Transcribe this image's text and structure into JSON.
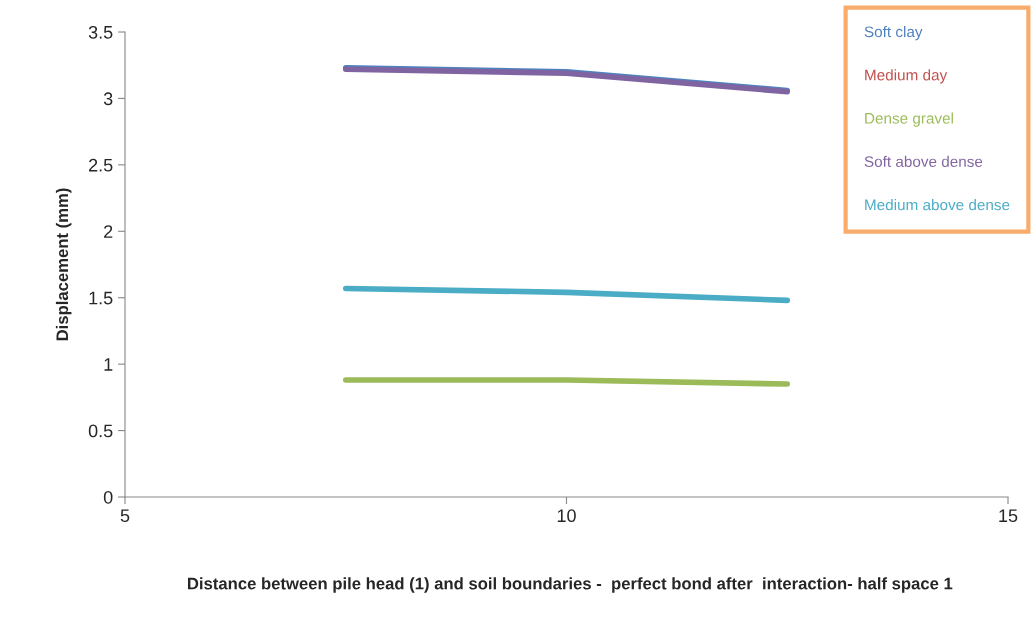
{
  "chart_data": {
    "type": "line",
    "xlabel": "Distance between pile head (1) and soil boundaries -  perfect bond after  interaction- half space 1",
    "ylabel": "Displacement (mm)",
    "x": [
      7.5,
      10,
      12.5
    ],
    "series": [
      {
        "name": "Soft clay",
        "color": "#4f81bd",
        "values": [
          3.23,
          3.2,
          3.06
        ]
      },
      {
        "name": "Medium day",
        "color": "#c0504d",
        "values": [
          null,
          null,
          null
        ]
      },
      {
        "name": "Dense gravel",
        "color": "#9bbb59",
        "values": [
          0.88,
          0.88,
          0.85
        ]
      },
      {
        "name": "Soft above dense",
        "color": "#8064a2",
        "values": [
          3.22,
          3.19,
          3.05
        ]
      },
      {
        "name": "Medium above dense",
        "color": "#4bacc6",
        "values": [
          1.57,
          1.54,
          1.48
        ]
      }
    ],
    "xlim": [
      5,
      15
    ],
    "xticks": [
      5,
      10,
      15
    ],
    "ylim": [
      0,
      3.5
    ],
    "yticks": [
      0,
      0.5,
      1,
      1.5,
      2,
      2.5,
      3,
      3.5
    ],
    "grid": false,
    "legend": "top right",
    "marker": "none",
    "line_style": "solid"
  }
}
